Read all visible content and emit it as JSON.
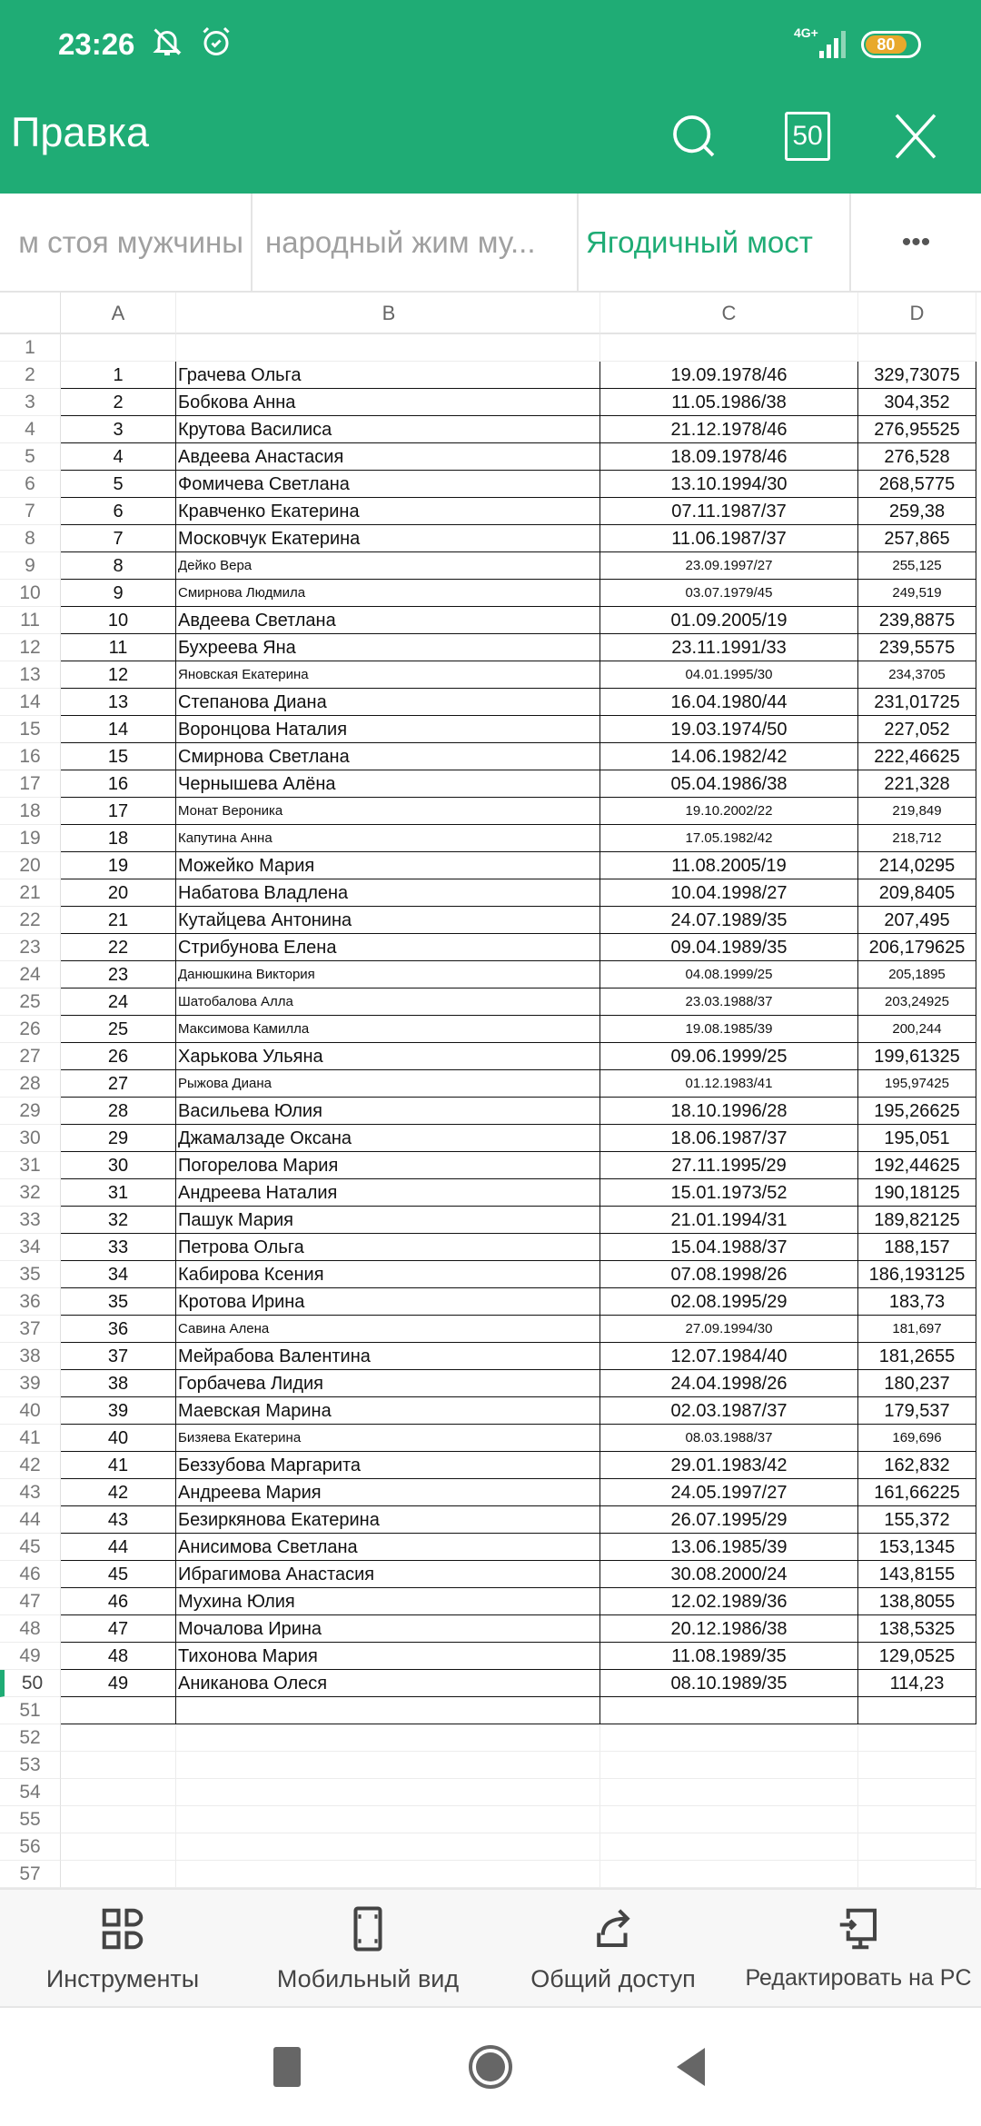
{
  "status_bar": {
    "time": "23:26",
    "network": "4G+",
    "battery": "80",
    "icons": [
      "bell-muted-icon",
      "alarm-icon",
      "signal-icon",
      "battery-icon"
    ]
  },
  "app_bar": {
    "title": "Правка",
    "search_icon": "search-icon",
    "sheet_count": "50",
    "close_icon": "close-icon",
    "color": "#1fac75"
  },
  "tabs": [
    {
      "label": "м стоя мужчины",
      "active": false
    },
    {
      "label": "народный жим му...",
      "active": false
    },
    {
      "label": "Ягодичный мост",
      "active": true
    },
    {
      "label": "•••",
      "active": false
    }
  ],
  "sheet": {
    "columns": [
      "A",
      "B",
      "C",
      "D"
    ],
    "row_numbers": [
      1,
      2,
      3,
      4,
      5,
      6,
      7,
      8,
      9,
      10,
      11,
      12,
      13,
      14,
      15,
      16,
      17,
      18,
      19,
      20,
      21,
      22,
      23,
      24,
      25,
      26,
      27,
      28,
      29,
      30,
      31,
      32,
      33,
      34,
      35,
      36,
      37,
      38,
      39,
      40,
      41,
      42,
      43,
      44,
      45,
      46,
      47,
      48,
      49,
      50,
      51,
      52,
      53,
      54,
      55,
      56,
      57
    ],
    "selected_row": 50,
    "rows": [
      [
        "1",
        "Грачева Ольга",
        "19.09.1978/46",
        "329,73075"
      ],
      [
        "2",
        "Бобкова Анна",
        "11.05.1986/38",
        "304,352"
      ],
      [
        "3",
        "Крутова Василиса",
        "21.12.1978/46",
        "276,95525"
      ],
      [
        "4",
        "Авдеева Анастасия",
        "18.09.1978/46",
        "276,528"
      ],
      [
        "5",
        "Фомичева Светлана",
        "13.10.1994/30",
        "268,5775"
      ],
      [
        "6",
        "Кравченко Екатерина",
        "07.11.1987/37",
        "259,38"
      ],
      [
        "7",
        "Московчук Екатерина",
        "11.06.1987/37",
        "257,865"
      ],
      [
        "8",
        "Дейко Вера",
        "23.09.1997/27",
        "255,125"
      ],
      [
        "9",
        "Смирнова Людмила",
        "03.07.1979/45",
        "249,519"
      ],
      [
        "10",
        "Авдеева Светлана",
        "01.09.2005/19",
        "239,8875"
      ],
      [
        "11",
        "Бухреева Яна",
        "23.11.1991/33",
        "239,5575"
      ],
      [
        "12",
        "Яновская Екатерина",
        "04.01.1995/30",
        "234,3705"
      ],
      [
        "13",
        "Степанова Диана",
        "16.04.1980/44",
        "231,01725"
      ],
      [
        "14",
        "Воронцова Наталия",
        "19.03.1974/50",
        "227,052"
      ],
      [
        "15",
        "Смирнова Светлана",
        "14.06.1982/42",
        "222,46625"
      ],
      [
        "16",
        "Чернышева Алёна",
        "05.04.1986/38",
        "221,328"
      ],
      [
        "17",
        "Монат Вероника",
        "19.10.2002/22",
        "219,849"
      ],
      [
        "18",
        "Капутина Анна",
        "17.05.1982/42",
        "218,712"
      ],
      [
        "19",
        "Можейко Мария",
        "11.08.2005/19",
        "214,0295"
      ],
      [
        "20",
        "Набатова Владлена",
        "10.04.1998/27",
        "209,8405"
      ],
      [
        "21",
        "Кутайцева Антонина",
        "24.07.1989/35",
        "207,495"
      ],
      [
        "22",
        "Стрибунова Елена",
        "09.04.1989/35",
        "206,179625"
      ],
      [
        "23",
        "Данюшкина Виктория",
        "04.08.1999/25",
        "205,1895"
      ],
      [
        "24",
        "Шатобалова Алла",
        "23.03.1988/37",
        "203,24925"
      ],
      [
        "25",
        "Максимова Камилла",
        "19.08.1985/39",
        "200,244"
      ],
      [
        "26",
        "Харькова Ульяна",
        "09.06.1999/25",
        "199,61325"
      ],
      [
        "27",
        "Рыжова Диана",
        "01.12.1983/41",
        "195,97425"
      ],
      [
        "28",
        "Васильева Юлия",
        "18.10.1996/28",
        "195,26625"
      ],
      [
        "29",
        "Джамалзаде Оксана",
        "18.06.1987/37",
        "195,051"
      ],
      [
        "30",
        "Погорелова Мария",
        "27.11.1995/29",
        "192,44625"
      ],
      [
        "31",
        "Андреева Наталия",
        "15.01.1973/52",
        "190,18125"
      ],
      [
        "32",
        "Пашук Мария",
        "21.01.1994/31",
        "189,82125"
      ],
      [
        "33",
        "Петрова Ольга",
        "15.04.1988/37",
        "188,157"
      ],
      [
        "34",
        "Кабирова Ксения",
        "07.08.1998/26",
        "186,193125"
      ],
      [
        "35",
        "Кротова Ирина",
        "02.08.1995/29",
        "183,73"
      ],
      [
        "36",
        "Савина Алена",
        "27.09.1994/30",
        "181,697"
      ],
      [
        "37",
        "Мейрабова Валентина",
        "12.07.1984/40",
        "181,2655"
      ],
      [
        "38",
        "Горбачева Лидия",
        "24.04.1998/26",
        "180,237"
      ],
      [
        "39",
        "Маевская Марина",
        "02.03.1987/37",
        "179,537"
      ],
      [
        "40",
        "Бизяева Екатерина",
        "08.03.1988/37",
        "169,696"
      ],
      [
        "41",
        "Беззубова Маргарита",
        "29.01.1983/42",
        "162,832"
      ],
      [
        "42",
        "Андреева Мария",
        "24.05.1997/27",
        "161,66225"
      ],
      [
        "43",
        "Безиркянова Екатерина",
        "26.07.1995/29",
        "155,372"
      ],
      [
        "44",
        "Анисимова Светлана",
        "13.06.1985/39",
        "153,1345"
      ],
      [
        "45",
        "Ибрагимова Анастасия",
        "30.08.2000/24",
        "143,8155"
      ],
      [
        "46",
        "Мухина Юлия",
        "12.02.1989/36",
        "138,8055"
      ],
      [
        "47",
        "Мочалова Ирина",
        "20.12.1986/38",
        "138,5325"
      ],
      [
        "48",
        "Тихонова Мария",
        "11.08.1989/35",
        "129,0525"
      ],
      [
        "49",
        "Аниканова Олеся",
        "08.10.1989/35",
        "114,23"
      ]
    ]
  },
  "toolbar": [
    {
      "label": "Инструменты",
      "icon": "tools-grid-icon"
    },
    {
      "label": "Мобильный вид",
      "icon": "mobile-view-icon"
    },
    {
      "label": "Общий доступ",
      "icon": "share-icon"
    },
    {
      "label": "Редактировать на PC",
      "icon": "edit-on-pc-icon"
    }
  ],
  "nav": {
    "icons": [
      "recents-square-icon",
      "home-circle-icon",
      "back-triangle-icon"
    ]
  }
}
